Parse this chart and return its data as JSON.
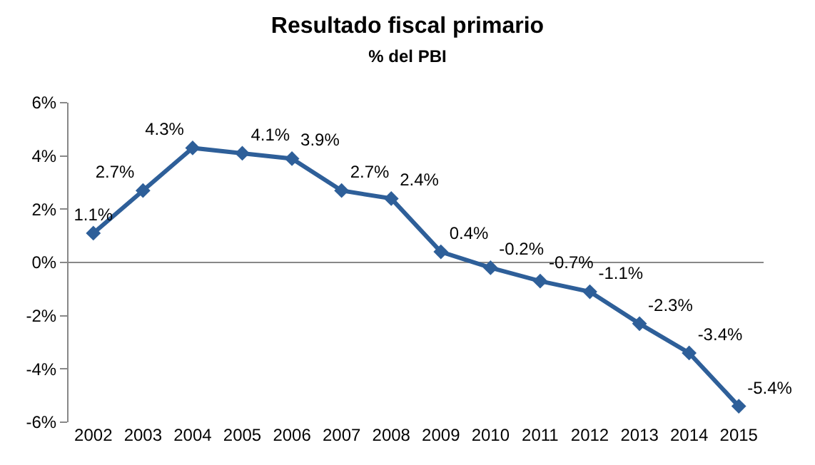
{
  "chart_data": {
    "type": "line",
    "title": "Resultado fiscal primario",
    "subtitle": "% del PBI",
    "categories": [
      "2002",
      "2003",
      "2004",
      "2005",
      "2006",
      "2007",
      "2008",
      "2009",
      "2010",
      "2011",
      "2012",
      "2013",
      "2014",
      "2015"
    ],
    "series": [
      {
        "color": "#2e5f99",
        "values": [
          1.1,
          2.7,
          4.3,
          4.1,
          3.9,
          2.7,
          2.4,
          0.4,
          -0.2,
          -0.7,
          -1.1,
          -2.3,
          -3.4,
          -5.4
        ],
        "value_labels": [
          "1.1%",
          "2.7%",
          "4.3%",
          "4.1%",
          "3.9%",
          "2.7%",
          "2.4%",
          "0.4%",
          "-0.2%",
          "-0.7%",
          "-1.1%",
          "-2.3%",
          "-3.4%",
          "-5.4%"
        ]
      }
    ],
    "ylim": [
      -6,
      6
    ],
    "yticks": [
      {
        "value": -6,
        "label": "-6%"
      },
      {
        "value": -4,
        "label": "-4%"
      },
      {
        "value": -2,
        "label": "-2%"
      },
      {
        "value": 0,
        "label": "0%"
      },
      {
        "value": 2,
        "label": "2%"
      },
      {
        "value": 4,
        "label": "4%"
      },
      {
        "value": 6,
        "label": "6%"
      }
    ],
    "ref_lines": [
      {
        "axis": "y",
        "value": 0,
        "color": "#888888",
        "line_style": "solid"
      }
    ],
    "grid": false,
    "legend": false,
    "marker": "diamond",
    "line_style": "solid"
  }
}
